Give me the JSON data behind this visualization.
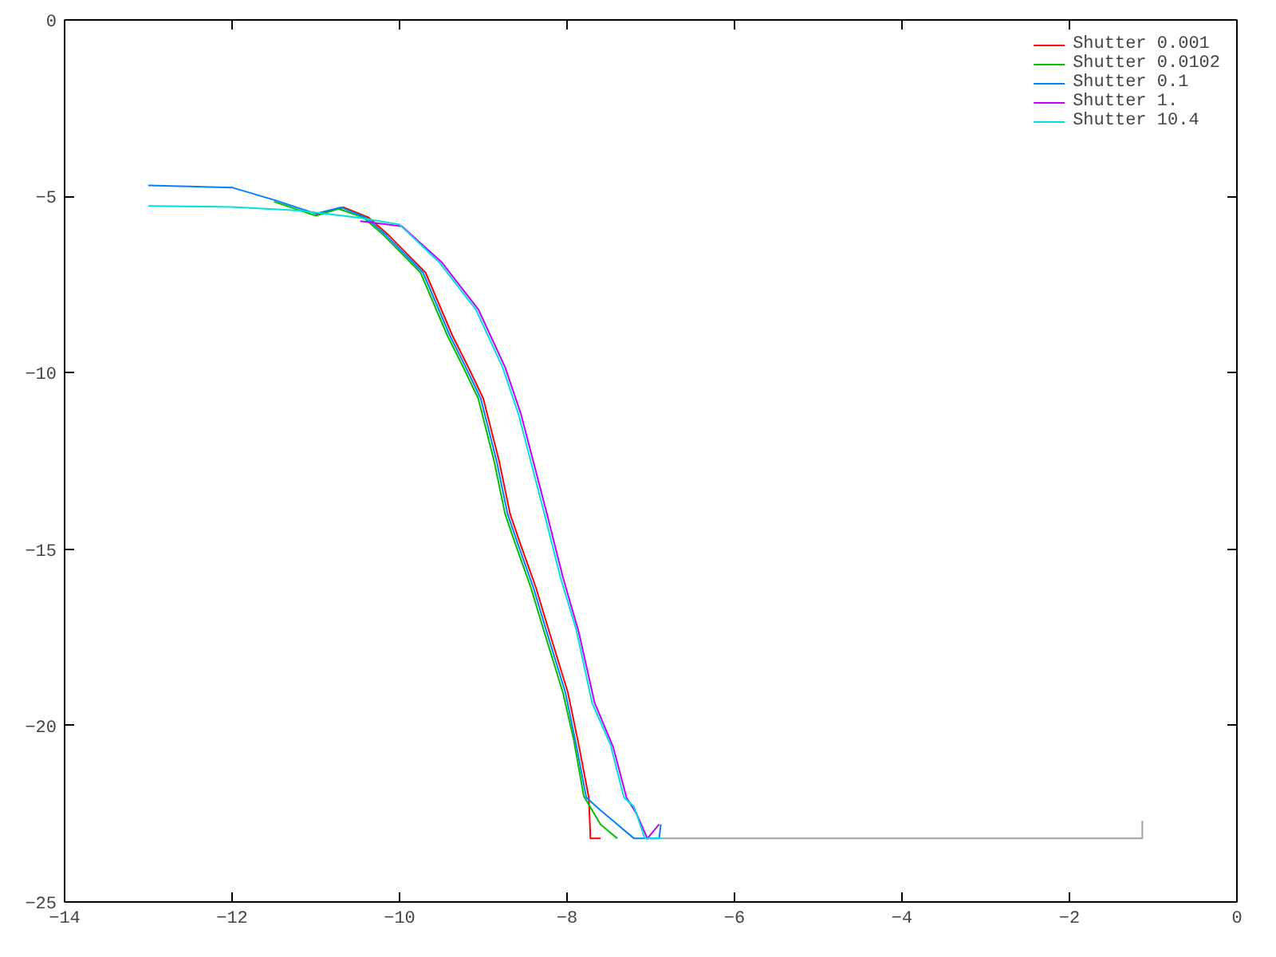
{
  "chart_data": {
    "type": "line",
    "xlim": [
      -14,
      0
    ],
    "ylim": [
      -25,
      0
    ],
    "xticks": [
      -14,
      -12,
      -10,
      -8,
      -6,
      -4,
      -2,
      0
    ],
    "yticks": [
      -25,
      -20,
      -15,
      -10,
      -5,
      0
    ],
    "grid": false,
    "legend": "top right",
    "series": [
      {
        "name": "Shutter 0.001",
        "color": "#ff0000",
        "x": [
          -11,
          -10.67,
          -10.37,
          -10.13,
          -9.69,
          -9.37,
          -9.18,
          -9.0,
          -8.81,
          -8.68,
          -8.55,
          -8.37,
          -8.24,
          -7.99,
          -7.86,
          -7.74,
          -7.72,
          -7.6
        ],
        "values": [
          -5.52,
          -5.31,
          -5.6,
          -6.1,
          -7.16,
          -8.94,
          -9.84,
          -10.73,
          -12.51,
          -14.0,
          -14.9,
          -16.1,
          -17.13,
          -19.06,
          -20.55,
          -22.04,
          -23.2,
          -23.2
        ]
      },
      {
        "name": "Shutter 0.0102",
        "color": "#00c000",
        "x": [
          -11.5,
          -11,
          -10.73,
          -10.43,
          -10.19,
          -9.75,
          -9.43,
          -9.24,
          -9.06,
          -8.87,
          -8.74,
          -8.61,
          -8.43,
          -8.3,
          -8.05,
          -7.92,
          -7.8,
          -7.6,
          -7.4
        ],
        "values": [
          -5.15,
          -5.55,
          -5.35,
          -5.6,
          -6.1,
          -7.16,
          -8.94,
          -9.84,
          -10.73,
          -12.51,
          -14.0,
          -14.9,
          -16.1,
          -17.13,
          -19.06,
          -20.4,
          -22.0,
          -22.8,
          -23.2
        ]
      },
      {
        "name": "Shutter 0.1",
        "color": "#0080ff",
        "x": [
          -13,
          -12,
          -11.5,
          -11,
          -10.7,
          -10.4,
          -10.16,
          -9.72,
          -9.4,
          -9.21,
          -9.03,
          -8.84,
          -8.71,
          -8.58,
          -8.4,
          -8.27,
          -8.02,
          -7.89,
          -7.77,
          -7.6,
          -7.2,
          -6.9,
          -6.88
        ],
        "values": [
          -4.69,
          -4.75,
          -5.1,
          -5.49,
          -5.31,
          -5.6,
          -6.1,
          -7.16,
          -8.94,
          -9.84,
          -10.73,
          -12.51,
          -14.0,
          -14.9,
          -16.1,
          -17.13,
          -19.06,
          -20.55,
          -22.04,
          -22.4,
          -23.2,
          -23.2,
          -22.8
        ]
      },
      {
        "name": "Shutter 1.",
        "color": "#c000ff",
        "x": [
          -10.47,
          -9.97,
          -9.5,
          -9.06,
          -8.74,
          -8.55,
          -8.37,
          -8.24,
          -8.05,
          -7.86,
          -7.67,
          -7.45,
          -7.29,
          -7.17,
          -7.04,
          -6.9
        ],
        "values": [
          -5.7,
          -5.85,
          -6.86,
          -8.2,
          -9.84,
          -11.17,
          -12.81,
          -14.0,
          -15.79,
          -17.35,
          -19.36,
          -20.6,
          -22.04,
          -22.5,
          -23.2,
          -22.8
        ]
      },
      {
        "name": "Shutter 10.4",
        "color": "#00e0e0",
        "x": [
          -13,
          -12,
          -11.2,
          -10.5,
          -10,
          -9.53,
          -9.09,
          -8.77,
          -8.58,
          -8.4,
          -8.27,
          -8.08,
          -7.89,
          -7.7,
          -7.48,
          -7.32,
          -7.2,
          -7.07,
          -6.86
        ],
        "values": [
          -5.27,
          -5.3,
          -5.4,
          -5.6,
          -5.8,
          -6.86,
          -8.2,
          -9.84,
          -11.17,
          -12.81,
          -14.0,
          -15.79,
          -17.28,
          -19.36,
          -20.55,
          -22.04,
          -22.3,
          -23.2,
          -23.2
        ]
      },
      {
        "color": "#a0a0a0",
        "x": [
          -6.86,
          -1.13,
          -1.13
        ],
        "values": [
          -23.2,
          -23.2,
          -22.7
        ]
      }
    ]
  }
}
